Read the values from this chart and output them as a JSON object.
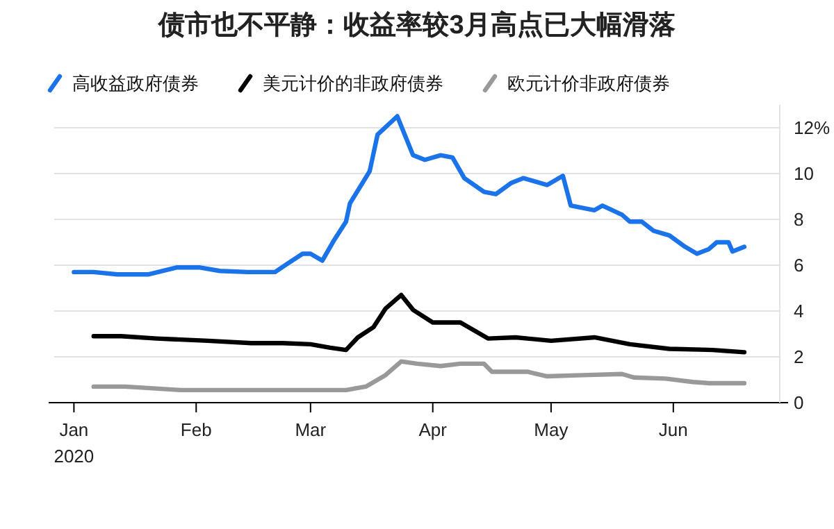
{
  "chart_data": {
    "type": "line",
    "title": "债市也不平静：收益率较3月高点已大幅滑落",
    "xlim": [
      "2019-12-27",
      "2020-06-28"
    ],
    "xticks": [
      {
        "value": "2020-01-01",
        "label": "Jan\n2020"
      },
      {
        "value": "2020-02-01",
        "label": "Feb"
      },
      {
        "value": "2020-03-01",
        "label": "Mar"
      },
      {
        "value": "2020-04-01",
        "label": "Apr"
      },
      {
        "value": "2020-05-01",
        "label": "May"
      },
      {
        "value": "2020-06-01",
        "label": "Jun"
      }
    ],
    "ylim": [
      0,
      13
    ],
    "yticks": [
      0,
      2,
      4,
      6,
      8,
      10,
      {
        "value": 12,
        "label": "12%"
      }
    ],
    "grid": "y",
    "legend": "top left",
    "line_style": "solid",
    "marker": "none",
    "series": [
      {
        "name": "高收益政府债券",
        "color": "#1a73e8",
        "x": [
          "2020-01-01",
          "2020-01-06",
          "2020-01-12",
          "2020-01-20",
          "2020-01-27",
          "2020-02-02",
          "2020-02-07",
          "2020-02-14",
          "2020-02-21",
          "2020-02-24",
          "2020-02-28",
          "2020-03-01",
          "2020-03-04",
          "2020-03-07",
          "2020-03-10",
          "2020-03-11",
          "2020-03-16",
          "2020-03-18",
          "2020-03-23",
          "2020-03-27",
          "2020-03-30",
          "2020-04-03",
          "2020-04-06",
          "2020-04-09",
          "2020-04-14",
          "2020-04-17",
          "2020-04-21",
          "2020-04-24",
          "2020-04-30",
          "2020-05-04",
          "2020-05-06",
          "2020-05-12",
          "2020-05-14",
          "2020-05-19",
          "2020-05-21",
          "2020-05-24",
          "2020-05-27",
          "2020-05-31",
          "2020-06-04",
          "2020-06-07",
          "2020-06-10",
          "2020-06-12",
          "2020-06-15",
          "2020-06-16",
          "2020-06-19"
        ],
        "values": [
          5.7,
          5.7,
          5.6,
          5.6,
          5.9,
          5.9,
          5.75,
          5.7,
          5.7,
          6.05,
          6.5,
          6.5,
          6.2,
          7.1,
          7.9,
          8.7,
          10.1,
          11.7,
          12.5,
          10.8,
          10.6,
          10.8,
          10.7,
          9.8,
          9.2,
          9.1,
          9.6,
          9.8,
          9.5,
          9.9,
          8.6,
          8.4,
          8.6,
          8.2,
          7.9,
          7.9,
          7.5,
          7.3,
          6.8,
          6.5,
          6.7,
          7.0,
          7.0,
          6.6,
          6.8
        ]
      },
      {
        "name": "美元计价的非政府债券",
        "color": "#000000",
        "x": [
          "2020-01-06",
          "2020-01-13",
          "2020-01-22",
          "2020-02-04",
          "2020-02-15",
          "2020-02-23",
          "2020-03-01",
          "2020-03-06",
          "2020-03-10",
          "2020-03-13",
          "2020-03-17",
          "2020-03-20",
          "2020-03-24",
          "2020-03-27",
          "2020-04-01",
          "2020-04-08",
          "2020-04-15",
          "2020-04-22",
          "2020-05-01",
          "2020-05-12",
          "2020-05-21",
          "2020-05-31",
          "2020-06-11",
          "2020-06-19"
        ],
        "values": [
          2.9,
          2.9,
          2.8,
          2.7,
          2.6,
          2.6,
          2.55,
          2.4,
          2.3,
          2.85,
          3.3,
          4.1,
          4.7,
          4.05,
          3.5,
          3.5,
          2.8,
          2.85,
          2.7,
          2.85,
          2.55,
          2.35,
          2.3,
          2.2
        ]
      },
      {
        "name": "欧元计价非政府债券",
        "color": "#999999",
        "x": [
          "2020-01-06",
          "2020-01-14",
          "2020-01-28",
          "2020-02-11",
          "2020-03-10",
          "2020-03-15",
          "2020-03-20",
          "2020-03-24",
          "2020-03-28",
          "2020-04-03",
          "2020-04-08",
          "2020-04-14",
          "2020-04-16",
          "2020-04-25",
          "2020-04-30",
          "2020-05-09",
          "2020-05-19",
          "2020-05-22",
          "2020-05-30",
          "2020-06-06",
          "2020-06-10",
          "2020-06-19"
        ],
        "values": [
          0.7,
          0.7,
          0.55,
          0.55,
          0.55,
          0.7,
          1.2,
          1.8,
          1.7,
          1.6,
          1.7,
          1.7,
          1.35,
          1.35,
          1.15,
          1.2,
          1.25,
          1.1,
          1.05,
          0.9,
          0.85,
          0.85
        ]
      }
    ]
  }
}
